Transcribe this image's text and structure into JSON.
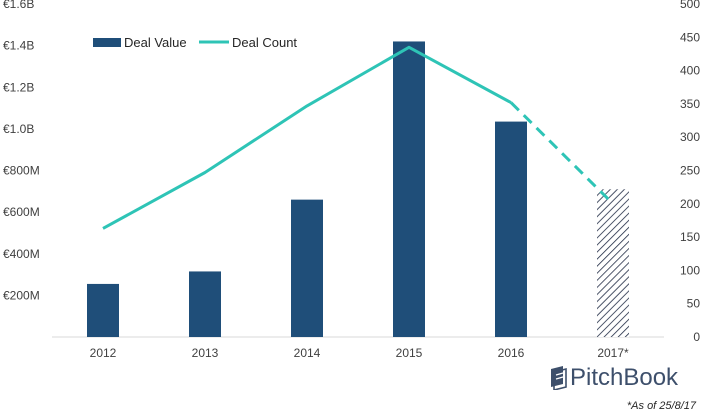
{
  "chart_data": {
    "type": "bar",
    "categories": [
      "2012",
      "2013",
      "2014",
      "2015",
      "2016",
      "2017*"
    ],
    "series": [
      {
        "name": "Deal Value",
        "type": "bar",
        "axis": "left",
        "values": [
          255,
          315,
          660,
          1420,
          1035,
          710
        ],
        "projected": [
          false,
          false,
          false,
          false,
          false,
          true
        ],
        "color": "#1f4e79"
      },
      {
        "name": "Deal Count",
        "type": "line",
        "axis": "right",
        "values": [
          163,
          247,
          347,
          435,
          352,
          200
        ],
        "projected": [
          false,
          false,
          false,
          false,
          false,
          true
        ],
        "color": "#2ec4b6"
      }
    ],
    "y_left": {
      "ylim": [
        0,
        1600
      ],
      "ticks": [
        200,
        400,
        600,
        800,
        1000,
        1200,
        1400,
        1600
      ],
      "tick_labels": [
        "€200M",
        "€400M",
        "€600M",
        "€800M",
        "€1.0B",
        "€1.2B",
        "€1.4B",
        "€1.6B"
      ]
    },
    "y_right": {
      "ylim": [
        0,
        500
      ],
      "ticks": [
        0,
        50,
        100,
        150,
        200,
        250,
        300,
        350,
        400,
        450,
        500
      ],
      "tick_labels": [
        "0",
        "50",
        "100",
        "150",
        "200",
        "250",
        "300",
        "350",
        "400",
        "450",
        "500"
      ]
    },
    "legend_placement": "top-left",
    "grid": false
  },
  "branding": {
    "logo_text": "PitchBook"
  },
  "footnote": "*As of 25/8/17"
}
